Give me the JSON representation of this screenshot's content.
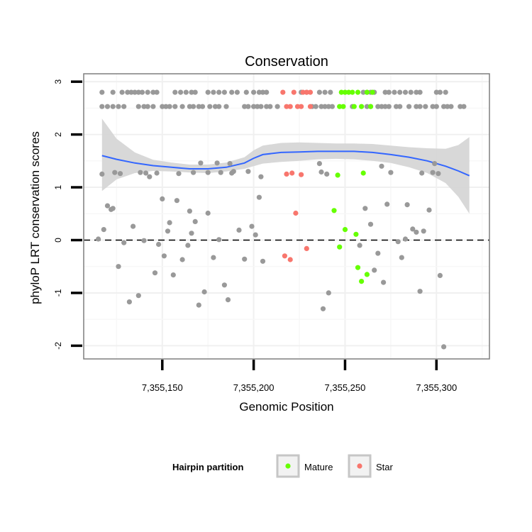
{
  "chart_data": {
    "type": "scatter",
    "title": "Conservation",
    "xlabel": "Genomic Position",
    "ylabel": "phyloP LRT conservation scores",
    "xlim": [
      7355107,
      7355329
    ],
    "ylim": [
      -2.25,
      3.15
    ],
    "x_ticks": [
      7355150,
      7355200,
      7355250,
      7355300
    ],
    "x_tick_labels": [
      "7,355,150",
      "7,355,200",
      "7,355,250",
      "7,355,300"
    ],
    "y_ticks": [
      -2,
      -1,
      0,
      1,
      2,
      3
    ],
    "y_tick_labels": [
      "-2",
      "-1",
      "0",
      "1",
      "2",
      "3"
    ],
    "hline": {
      "y": 0,
      "style": "dashed"
    },
    "smooth": {
      "color": "#3366ff",
      "band_color": "#d4d4d4",
      "x": [
        7355117,
        7355125,
        7355135,
        7355145,
        7355155,
        7355165,
        7355175,
        7355185,
        7355195,
        7355200,
        7355205,
        7355215,
        7355225,
        7355235,
        7355245,
        7355255,
        7355265,
        7355275,
        7355285,
        7355295,
        7355305,
        7355312,
        7355318
      ],
      "y": [
        1.6,
        1.53,
        1.46,
        1.41,
        1.38,
        1.35,
        1.35,
        1.38,
        1.46,
        1.55,
        1.62,
        1.66,
        1.67,
        1.68,
        1.68,
        1.68,
        1.66,
        1.62,
        1.57,
        1.5,
        1.4,
        1.31,
        1.22
      ],
      "lower": [
        0.93,
        1.15,
        1.27,
        1.31,
        1.3,
        1.28,
        1.27,
        1.3,
        1.35,
        1.4,
        1.45,
        1.48,
        1.5,
        1.53,
        1.54,
        1.53,
        1.5,
        1.46,
        1.38,
        1.27,
        1.08,
        0.82,
        0.5
      ],
      "upper": [
        2.3,
        1.92,
        1.66,
        1.52,
        1.47,
        1.43,
        1.43,
        1.47,
        1.57,
        1.7,
        1.79,
        1.84,
        1.85,
        1.84,
        1.83,
        1.83,
        1.82,
        1.79,
        1.76,
        1.74,
        1.73,
        1.8,
        1.95
      ]
    },
    "series": [
      {
        "name": "Other",
        "color": "#999999",
        "in_legend": false,
        "points": [
          [
            7355117,
            2.8
          ],
          [
            7355123,
            2.8
          ],
          [
            7355128,
            2.8
          ],
          [
            7355131,
            2.8
          ],
          [
            7355133,
            2.8
          ],
          [
            7355135,
            2.8
          ],
          [
            7355137,
            2.8
          ],
          [
            7355139,
            2.8
          ],
          [
            7355142,
            2.8
          ],
          [
            7355145,
            2.8
          ],
          [
            7355147,
            2.8
          ],
          [
            7355157,
            2.8
          ],
          [
            7355160,
            2.8
          ],
          [
            7355163,
            2.8
          ],
          [
            7355166,
            2.8
          ],
          [
            7355168,
            2.8
          ],
          [
            7355175,
            2.8
          ],
          [
            7355178,
            2.8
          ],
          [
            7355181,
            2.8
          ],
          [
            7355184,
            2.8
          ],
          [
            7355188,
            2.8
          ],
          [
            7355191,
            2.8
          ],
          [
            7355196,
            2.8
          ],
          [
            7355200,
            2.8
          ],
          [
            7355203,
            2.8
          ],
          [
            7355205,
            2.8
          ],
          [
            7355207,
            2.8
          ],
          [
            7355226,
            2.8
          ],
          [
            7355229,
            2.8
          ],
          [
            7355236,
            2.8
          ],
          [
            7355239,
            2.8
          ],
          [
            7355242,
            2.8
          ],
          [
            7355260,
            2.8
          ],
          [
            7355262,
            2.8
          ],
          [
            7355264,
            2.8
          ],
          [
            7355266,
            2.8
          ],
          [
            7355272,
            2.8
          ],
          [
            7355274,
            2.8
          ],
          [
            7355277,
            2.8
          ],
          [
            7355280,
            2.8
          ],
          [
            7355283,
            2.8
          ],
          [
            7355286,
            2.8
          ],
          [
            7355289,
            2.8
          ],
          [
            7355291,
            2.8
          ],
          [
            7355300,
            2.8
          ],
          [
            7355302,
            2.8
          ],
          [
            7355305,
            2.8
          ],
          [
            7355117,
            2.53
          ],
          [
            7355120,
            2.53
          ],
          [
            7355123,
            2.53
          ],
          [
            7355126,
            2.53
          ],
          [
            7355129,
            2.53
          ],
          [
            7355137,
            2.53
          ],
          [
            7355140,
            2.53
          ],
          [
            7355142,
            2.53
          ],
          [
            7355145,
            2.53
          ],
          [
            7355150,
            2.53
          ],
          [
            7355152,
            2.53
          ],
          [
            7355154,
            2.53
          ],
          [
            7355157,
            2.53
          ],
          [
            7355161,
            2.53
          ],
          [
            7355165,
            2.53
          ],
          [
            7355167,
            2.53
          ],
          [
            7355170,
            2.53
          ],
          [
            7355172,
            2.53
          ],
          [
            7355176,
            2.53
          ],
          [
            7355179,
            2.53
          ],
          [
            7355181,
            2.53
          ],
          [
            7355185,
            2.53
          ],
          [
            7355195,
            2.53
          ],
          [
            7355197,
            2.53
          ],
          [
            7355200,
            2.53
          ],
          [
            7355202,
            2.53
          ],
          [
            7355204,
            2.53
          ],
          [
            7355207,
            2.53
          ],
          [
            7355209,
            2.53
          ],
          [
            7355213,
            2.53
          ],
          [
            7355232,
            2.53
          ],
          [
            7355234,
            2.53
          ],
          [
            7355237,
            2.53
          ],
          [
            7355239,
            2.53
          ],
          [
            7355241,
            2.53
          ],
          [
            7355243,
            2.53
          ],
          [
            7355254,
            2.53
          ],
          [
            7355262,
            2.53
          ],
          [
            7355264,
            2.53
          ],
          [
            7355268,
            2.53
          ],
          [
            7355270,
            2.53
          ],
          [
            7355272,
            2.53
          ],
          [
            7355274,
            2.53
          ],
          [
            7355278,
            2.53
          ],
          [
            7355280,
            2.53
          ],
          [
            7355285,
            2.53
          ],
          [
            7355289,
            2.53
          ],
          [
            7355291,
            2.53
          ],
          [
            7355294,
            2.53
          ],
          [
            7355298,
            2.53
          ],
          [
            7355300,
            2.53
          ],
          [
            7355304,
            2.53
          ],
          [
            7355306,
            2.53
          ],
          [
            7355308,
            2.53
          ],
          [
            7355313,
            2.53
          ],
          [
            7355315,
            2.53
          ],
          [
            7355115,
            0.02
          ],
          [
            7355117,
            1.25
          ],
          [
            7355118,
            0.2
          ],
          [
            7355120,
            0.65
          ],
          [
            7355122,
            0.58
          ],
          [
            7355123,
            0.6
          ],
          [
            7355124,
            1.28
          ],
          [
            7355126,
            -0.5
          ],
          [
            7355127,
            1.26
          ],
          [
            7355129,
            -0.05
          ],
          [
            7355132,
            -1.17
          ],
          [
            7355134,
            0.26
          ],
          [
            7355137,
            -1.05
          ],
          [
            7355138,
            1.28
          ],
          [
            7355140,
            -0.01
          ],
          [
            7355141,
            1.27
          ],
          [
            7355143,
            1.2
          ],
          [
            7355146,
            -0.62
          ],
          [
            7355147,
            1.27
          ],
          [
            7355148,
            -0.08
          ],
          [
            7355150,
            0.78
          ],
          [
            7355151,
            -0.3
          ],
          [
            7355153,
            0.17
          ],
          [
            7355154,
            0.33
          ],
          [
            7355156,
            -0.66
          ],
          [
            7355158,
            0.75
          ],
          [
            7355159,
            1.26
          ],
          [
            7355161,
            -0.37
          ],
          [
            7355164,
            -0.1
          ],
          [
            7355165,
            0.55
          ],
          [
            7355167,
            1.28
          ],
          [
            7355166,
            0.13
          ],
          [
            7355168,
            0.35
          ],
          [
            7355170,
            -1.23
          ],
          [
            7355171,
            1.46
          ],
          [
            7355173,
            -0.98
          ],
          [
            7355175,
            0.51
          ],
          [
            7355175,
            1.28
          ],
          [
            7355178,
            -0.33
          ],
          [
            7355180,
            1.46
          ],
          [
            7355181,
            0.01
          ],
          [
            7355182,
            1.28
          ],
          [
            7355184,
            -0.85
          ],
          [
            7355186,
            -1.13
          ],
          [
            7355187,
            1.45
          ],
          [
            7355188,
            1.27
          ],
          [
            7355189,
            1.3
          ],
          [
            7355192,
            0.19
          ],
          [
            7355195,
            -0.36
          ],
          [
            7355197,
            1.3
          ],
          [
            7355199,
            0.26
          ],
          [
            7355201,
            0.1
          ],
          [
            7355203,
            0.81
          ],
          [
            7355204,
            1.2
          ],
          [
            7355205,
            -0.4
          ],
          [
            7355236,
            1.45
          ],
          [
            7355237,
            1.29
          ],
          [
            7355238,
            -1.3
          ],
          [
            7355240,
            1.25
          ],
          [
            7355241,
            -1.0
          ],
          [
            7355258,
            -0.1
          ],
          [
            7355261,
            0.6
          ],
          [
            7355264,
            0.3
          ],
          [
            7355266,
            -0.57
          ],
          [
            7355268,
            -0.25
          ],
          [
            7355270,
            1.4
          ],
          [
            7355271,
            -0.8
          ],
          [
            7355273,
            0.68
          ],
          [
            7355275,
            1.28
          ],
          [
            7355279,
            -0.03
          ],
          [
            7355281,
            -0.33
          ],
          [
            7355283,
            0.02
          ],
          [
            7355284,
            0.67
          ],
          [
            7355287,
            0.21
          ],
          [
            7355289,
            0.15
          ],
          [
            7355291,
            -0.97
          ],
          [
            7355292,
            1.27
          ],
          [
            7355293,
            0.17
          ],
          [
            7355296,
            0.57
          ],
          [
            7355298,
            1.28
          ],
          [
            7355299,
            1.45
          ],
          [
            7355301,
            1.26
          ],
          [
            7355302,
            -0.67
          ],
          [
            7355304,
            -2.02
          ]
        ]
      },
      {
        "name": "Mature",
        "color": "#66ff00",
        "in_legend": true,
        "points": [
          [
            7355248,
            2.8
          ],
          [
            7355250,
            2.8
          ],
          [
            7355252,
            2.8
          ],
          [
            7355254,
            2.8
          ],
          [
            7355257,
            2.8
          ],
          [
            7355262,
            2.8
          ],
          [
            7355265,
            2.8
          ],
          [
            7355247,
            2.53
          ],
          [
            7355249,
            2.53
          ],
          [
            7355255,
            2.53
          ],
          [
            7355259,
            2.53
          ],
          [
            7355264,
            2.53
          ],
          [
            7355244,
            0.56
          ],
          [
            7355246,
            1.23
          ],
          [
            7355247,
            -0.13
          ],
          [
            7355250,
            0.2
          ],
          [
            7355256,
            0.11
          ],
          [
            7355257,
            -0.52
          ],
          [
            7355259,
            -0.78
          ],
          [
            7355260,
            1.27
          ],
          [
            7355262,
            -0.65
          ]
        ]
      },
      {
        "name": "Star",
        "color": "#f8766d",
        "in_legend": true,
        "points": [
          [
            7355216,
            2.8
          ],
          [
            7355222,
            2.8
          ],
          [
            7355227,
            2.8
          ],
          [
            7355229,
            2.8
          ],
          [
            7355231,
            2.8
          ],
          [
            7355218,
            2.53
          ],
          [
            7355220,
            2.53
          ],
          [
            7355224,
            2.53
          ],
          [
            7355226,
            2.53
          ],
          [
            7355231,
            2.53
          ],
          [
            7355217,
            -0.3
          ],
          [
            7355218,
            1.25
          ],
          [
            7355220,
            -0.37
          ],
          [
            7355221,
            1.27
          ],
          [
            7355223,
            0.51
          ],
          [
            7355226,
            1.24
          ],
          [
            7355229,
            -0.16
          ]
        ]
      }
    ],
    "legend": {
      "title": "Hairpin partition",
      "position": "bottom",
      "entries": [
        "Mature",
        "Star"
      ]
    }
  }
}
